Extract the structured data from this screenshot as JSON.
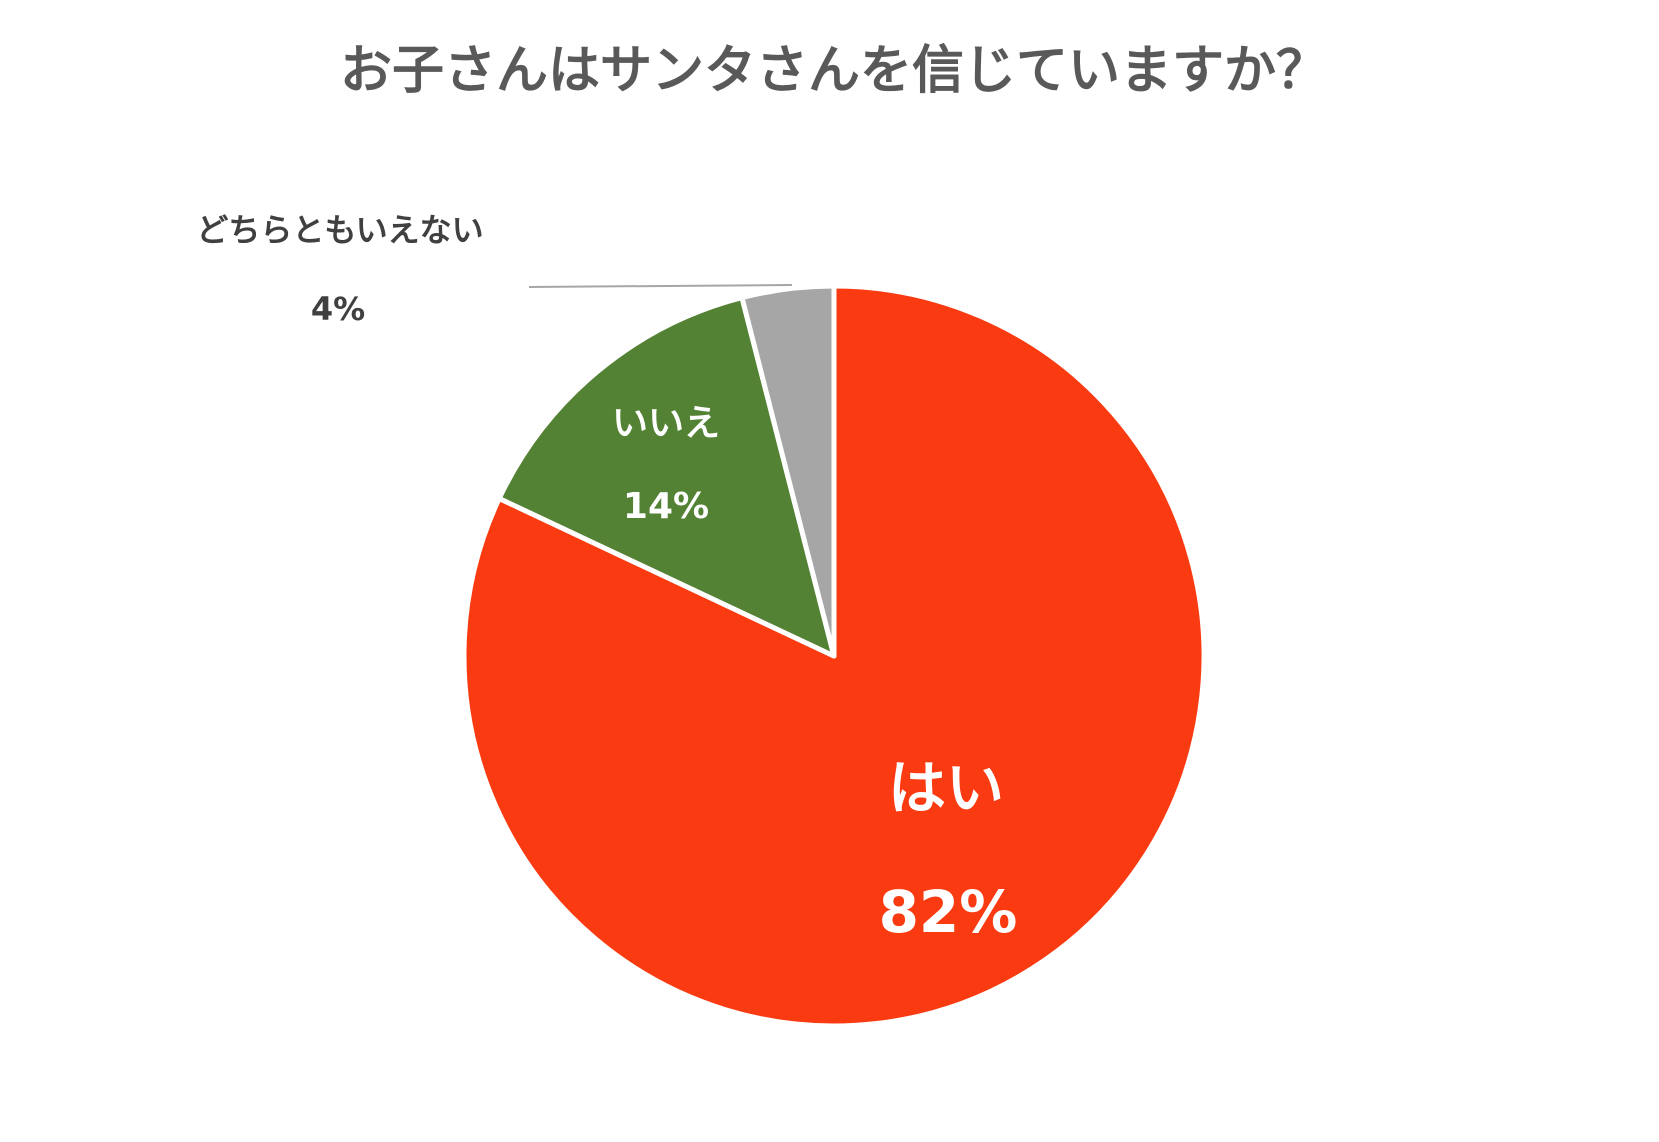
{
  "chart_data": {
    "type": "pie",
    "title": "お子さんはサンタさんを信じていますか？",
    "categories": [
      "はい",
      "いいえ",
      "どちらともいえない"
    ],
    "values": [
      82,
      14,
      4
    ],
    "value_labels": [
      "82%",
      "14%",
      "4%"
    ],
    "colors": [
      "#fa3a10",
      "#548235",
      "#a6a6a6"
    ]
  }
}
